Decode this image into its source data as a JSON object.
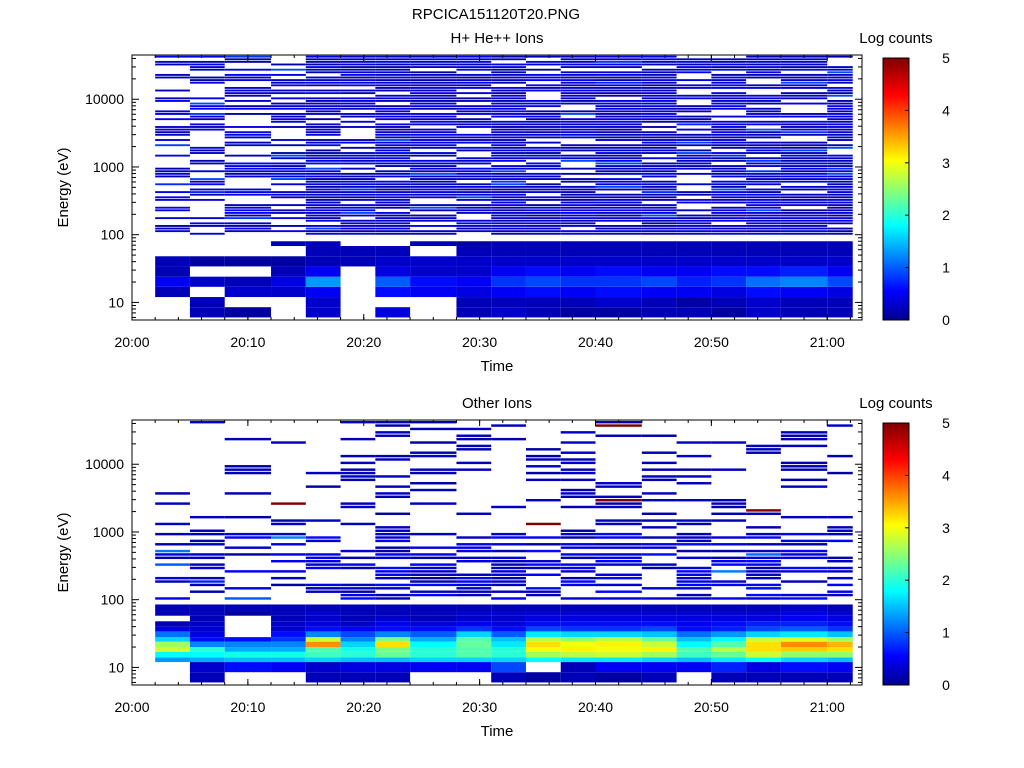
{
  "figure_title": "RPCICA151120T20.PNG",
  "chart_data": [
    {
      "type": "heatmap",
      "title": "H+ He++ Ions",
      "xlabel": "Time",
      "ylabel": "Energy (eV)",
      "yscale": "log",
      "ylim": [
        5.5,
        45000
      ],
      "xlim": [
        "20:00",
        "21:03"
      ],
      "xticks": [
        "20:00",
        "20:10",
        "20:20",
        "20:30",
        "20:40",
        "20:50",
        "21:00"
      ],
      "yticks": [
        "10",
        "100",
        "1000",
        "10000"
      ],
      "colorbar": {
        "label": "Log counts",
        "ticks": [
          "0",
          "1",
          "2",
          "3",
          "4",
          "5"
        ],
        "range": [
          0,
          5
        ],
        "colormap": "jet"
      },
      "time_bins_start": [
        "20:02",
        "20:05",
        "20:08",
        "20:12",
        "20:15",
        "20:18",
        "20:21",
        "20:24",
        "20:28",
        "20:31",
        "20:34",
        "20:37",
        "20:40",
        "20:44",
        "20:47",
        "20:50",
        "20:53",
        "20:56",
        "21:00"
      ],
      "energy_bins_low": [
        6,
        8.5,
        12,
        17,
        24,
        34,
        48,
        68
      ],
      "values_low_energy": [
        [
          null,
          0.2,
          0.1,
          null,
          0.3,
          null,
          0.4,
          null,
          0.2,
          0.3,
          0.2,
          0.1,
          0.1,
          0.2,
          0.2,
          0.1,
          0.3,
          0.2,
          0.2
        ],
        [
          null,
          0.2,
          null,
          null,
          0.3,
          null,
          null,
          null,
          0.2,
          0.2,
          0.2,
          0.2,
          0.3,
          0.2,
          0.1,
          0.2,
          0.3,
          0.2,
          0.2
        ],
        [
          0.2,
          null,
          0.3,
          0.3,
          0.5,
          null,
          0.6,
          0.5,
          0.4,
          0.5,
          0.6,
          0.5,
          0.6,
          0.5,
          0.5,
          0.4,
          0.6,
          0.5,
          0.4
        ],
        [
          0.5,
          0.3,
          0.2,
          0.4,
          1.3,
          null,
          1.0,
          0.6,
          0.5,
          0.8,
          0.9,
          0.8,
          0.8,
          0.9,
          0.7,
          0.8,
          1.1,
          1.2,
          0.9
        ],
        [
          0.2,
          null,
          null,
          0.2,
          0.5,
          null,
          0.4,
          0.3,
          0.3,
          0.5,
          0.6,
          0.5,
          0.6,
          0.5,
          0.5,
          0.6,
          0.6,
          0.7,
          0.5
        ],
        [
          0.2,
          0.1,
          0.1,
          0.1,
          0.2,
          0.2,
          0.3,
          0.3,
          0.3,
          0.3,
          0.3,
          0.3,
          0.3,
          0.3,
          0.3,
          0.3,
          0.3,
          0.3,
          0.3
        ],
        [
          null,
          null,
          null,
          null,
          0.2,
          0.2,
          0.2,
          null,
          0.2,
          0.2,
          0.2,
          0.2,
          0.2,
          0.2,
          0.2,
          0.2,
          0.2,
          0.2,
          0.2
        ],
        [
          null,
          null,
          null,
          0.2,
          0.2,
          null,
          null,
          0.2,
          0.1,
          0.2,
          0.2,
          0.2,
          0.2,
          0.2,
          0.2,
          0.2,
          0.2,
          0.2,
          0.2
        ]
      ],
      "high_energy_band": {
        "range_eV": [
          100,
          45000
        ],
        "typical_log_counts": [
          0.1,
          0.5
        ],
        "peak_log_counts": 0.9
      }
    },
    {
      "type": "heatmap",
      "title": "Other Ions",
      "xlabel": "Time",
      "ylabel": "Energy (eV)",
      "yscale": "log",
      "ylim": [
        5.5,
        45000
      ],
      "xlim": [
        "20:00",
        "21:03"
      ],
      "xticks": [
        "20:00",
        "20:10",
        "20:20",
        "20:30",
        "20:40",
        "20:50",
        "21:00"
      ],
      "yticks": [
        "10",
        "100",
        "1000",
        "10000"
      ],
      "colorbar": {
        "label": "Log counts",
        "ticks": [
          "0",
          "1",
          "2",
          "3",
          "4",
          "5"
        ],
        "range": [
          0,
          5
        ],
        "colormap": "jet"
      },
      "time_bins_start": [
        "20:02",
        "20:05",
        "20:08",
        "20:12",
        "20:15",
        "20:18",
        "20:21",
        "20:24",
        "20:28",
        "20:31",
        "20:34",
        "20:37",
        "20:40",
        "20:44",
        "20:47",
        "20:50",
        "20:53",
        "20:56",
        "21:00"
      ],
      "energy_bins_low": [
        6,
        8.5,
        12,
        14,
        17,
        20,
        24,
        28,
        34,
        40,
        48,
        58,
        68
      ],
      "values_low_energy": [
        [
          null,
          0.2,
          null,
          null,
          0.2,
          0.2,
          0.2,
          null,
          null,
          0.2,
          0.1,
          0.2,
          0.1,
          0.2,
          null,
          0.2,
          0.2,
          0.2,
          0.2
        ],
        [
          null,
          0.3,
          0.6,
          0.5,
          0.3,
          0.4,
          0.4,
          0.5,
          0.5,
          0.9,
          null,
          0.2,
          0.5,
          0.5,
          0.5,
          0.7,
          0.4,
          0.6,
          0.5
        ],
        [
          1.3,
          1.4,
          1.5,
          1.5,
          1.6,
          1.5,
          1.5,
          1.6,
          1.6,
          1.6,
          1.8,
          1.7,
          1.7,
          1.6,
          1.5,
          1.7,
          1.8,
          1.6,
          1.5
        ],
        [
          1.8,
          1.8,
          1.9,
          1.9,
          2.1,
          2.0,
          2.3,
          2.0,
          2.2,
          2.0,
          2.6,
          2.7,
          2.8,
          2.6,
          2.1,
          2.3,
          2.8,
          2.5,
          2.5
        ],
        [
          2.8,
          2.0,
          1.4,
          1.4,
          2.2,
          1.9,
          2.4,
          2.0,
          2.2,
          2.0,
          3.0,
          3.1,
          3.0,
          3.1,
          2.2,
          2.7,
          3.2,
          3.3,
          3.2
        ],
        [
          2.6,
          1.2,
          1.2,
          1.2,
          3.6,
          1.6,
          3.2,
          1.8,
          2.3,
          1.7,
          3.2,
          3.0,
          3.1,
          2.8,
          1.8,
          2.2,
          3.2,
          3.6,
          3.4
        ],
        [
          1.6,
          0.6,
          0.6,
          0.8,
          2.8,
          1.2,
          2.4,
          1.4,
          2.2,
          1.5,
          2.7,
          2.5,
          2.7,
          2.3,
          1.5,
          1.8,
          2.8,
          2.9,
          2.6
        ],
        [
          1.1,
          0.4,
          null,
          0.6,
          1.2,
          0.9,
          1.2,
          1.0,
          1.6,
          1.0,
          1.7,
          1.6,
          1.6,
          1.5,
          1.1,
          1.3,
          1.6,
          1.7,
          1.5
        ],
        [
          0.4,
          0.3,
          null,
          0.3,
          0.6,
          0.5,
          0.6,
          0.6,
          0.8,
          0.6,
          0.9,
          0.8,
          0.8,
          0.9,
          0.6,
          0.7,
          0.9,
          1.0,
          0.8
        ],
        [
          0.2,
          0.3,
          null,
          0.3,
          0.4,
          0.3,
          0.5,
          0.4,
          0.5,
          0.4,
          0.6,
          0.6,
          0.6,
          0.6,
          0.5,
          0.6,
          0.7,
          0.7,
          0.6
        ],
        [
          null,
          0.2,
          null,
          0.2,
          0.3,
          0.2,
          0.3,
          0.2,
          0.3,
          0.3,
          0.4,
          0.4,
          0.4,
          0.4,
          0.4,
          0.4,
          0.4,
          0.5,
          0.4
        ],
        [
          0.2,
          0.2,
          0.1,
          0.2,
          0.3,
          0.2,
          0.2,
          0.2,
          0.3,
          0.3,
          0.3,
          0.3,
          0.3,
          0.3,
          0.3,
          0.3,
          0.3,
          0.4,
          0.3
        ],
        [
          0.2,
          0.2,
          0.2,
          0.2,
          0.2,
          0.2,
          0.2,
          0.2,
          0.2,
          0.2,
          0.2,
          0.2,
          0.2,
          0.2,
          0.2,
          0.2,
          0.2,
          0.3,
          0.2
        ]
      ],
      "mid_energy_band": {
        "range_eV": [
          100,
          1000
        ],
        "typical_log_counts": [
          0.1,
          0.6
        ],
        "peak_log_counts": 1.5
      },
      "high_energy_band": {
        "range_eV": [
          1000,
          45000
        ],
        "typical_log_counts": [
          0.1,
          0.3
        ],
        "sparse": true
      }
    }
  ]
}
